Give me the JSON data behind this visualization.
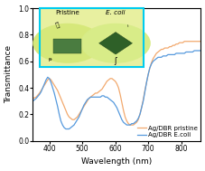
{
  "xlabel": "Wavelength (nm)",
  "ylabel": "Transmittance",
  "xlim": [
    350,
    860
  ],
  "ylim": [
    0.0,
    1.0
  ],
  "xticks": [
    400,
    500,
    600,
    700,
    800
  ],
  "yticks": [
    0.0,
    0.2,
    0.4,
    0.6,
    0.8,
    1.0
  ],
  "pristine_color": "#F2A96E",
  "ecoli_color": "#5599DD",
  "legend_labels": [
    "Ag/DBR pristine",
    "Ag/DBR E.coli"
  ],
  "inset_label_pristine": "Pristine",
  "inset_label_ecoli": "E. coli",
  "inset_box_color": "#00CCEE",
  "pristine_x": [
    350,
    360,
    370,
    375,
    380,
    385,
    390,
    395,
    400,
    405,
    410,
    415,
    420,
    425,
    430,
    435,
    440,
    445,
    450,
    455,
    460,
    465,
    470,
    475,
    480,
    485,
    490,
    495,
    500,
    505,
    510,
    515,
    520,
    525,
    530,
    535,
    540,
    545,
    550,
    555,
    560,
    565,
    570,
    575,
    580,
    585,
    590,
    595,
    600,
    605,
    610,
    615,
    620,
    625,
    630,
    635,
    640,
    645,
    650,
    655,
    660,
    665,
    670,
    675,
    680,
    685,
    690,
    695,
    700,
    705,
    710,
    715,
    720,
    725,
    730,
    735,
    740,
    745,
    750,
    755,
    760,
    765,
    770,
    775,
    780,
    785,
    790,
    795,
    800,
    805,
    810,
    815,
    820,
    825,
    830,
    835,
    840,
    845,
    850,
    855,
    860
  ],
  "pristine_y": [
    0.32,
    0.33,
    0.36,
    0.38,
    0.4,
    0.42,
    0.44,
    0.46,
    0.47,
    0.46,
    0.44,
    0.42,
    0.4,
    0.38,
    0.35,
    0.32,
    0.29,
    0.26,
    0.23,
    0.2,
    0.18,
    0.17,
    0.16,
    0.16,
    0.17,
    0.18,
    0.2,
    0.22,
    0.24,
    0.26,
    0.28,
    0.3,
    0.32,
    0.33,
    0.34,
    0.35,
    0.36,
    0.36,
    0.37,
    0.38,
    0.39,
    0.41,
    0.43,
    0.45,
    0.46,
    0.47,
    0.47,
    0.46,
    0.45,
    0.43,
    0.4,
    0.35,
    0.29,
    0.23,
    0.18,
    0.15,
    0.13,
    0.12,
    0.12,
    0.12,
    0.13,
    0.14,
    0.16,
    0.2,
    0.25,
    0.31,
    0.38,
    0.44,
    0.5,
    0.55,
    0.59,
    0.62,
    0.64,
    0.66,
    0.67,
    0.68,
    0.69,
    0.69,
    0.7,
    0.7,
    0.7,
    0.71,
    0.71,
    0.72,
    0.72,
    0.73,
    0.73,
    0.74,
    0.74,
    0.74,
    0.75,
    0.75,
    0.75,
    0.75,
    0.75,
    0.75,
    0.75,
    0.75,
    0.75,
    0.75,
    0.75
  ],
  "ecoli_x": [
    350,
    360,
    370,
    375,
    380,
    385,
    390,
    395,
    400,
    405,
    410,
    415,
    420,
    425,
    430,
    435,
    440,
    445,
    450,
    455,
    460,
    465,
    470,
    475,
    480,
    485,
    490,
    495,
    500,
    505,
    510,
    515,
    520,
    525,
    530,
    535,
    540,
    545,
    550,
    555,
    560,
    565,
    570,
    575,
    580,
    585,
    590,
    595,
    600,
    605,
    610,
    615,
    620,
    625,
    630,
    635,
    640,
    645,
    650,
    655,
    660,
    665,
    670,
    675,
    680,
    685,
    690,
    695,
    700,
    705,
    710,
    715,
    720,
    725,
    730,
    735,
    740,
    745,
    750,
    755,
    760,
    765,
    770,
    775,
    780,
    785,
    790,
    795,
    800,
    805,
    810,
    815,
    820,
    825,
    830,
    835,
    840,
    845,
    850,
    855,
    860
  ],
  "ecoli_y": [
    0.3,
    0.32,
    0.35,
    0.37,
    0.4,
    0.43,
    0.46,
    0.48,
    0.47,
    0.44,
    0.4,
    0.36,
    0.31,
    0.26,
    0.2,
    0.15,
    0.12,
    0.1,
    0.09,
    0.09,
    0.09,
    0.1,
    0.11,
    0.12,
    0.14,
    0.16,
    0.18,
    0.21,
    0.24,
    0.27,
    0.29,
    0.31,
    0.32,
    0.33,
    0.33,
    0.33,
    0.33,
    0.33,
    0.33,
    0.33,
    0.34,
    0.34,
    0.33,
    0.33,
    0.32,
    0.31,
    0.3,
    0.29,
    0.27,
    0.25,
    0.22,
    0.19,
    0.16,
    0.14,
    0.13,
    0.12,
    0.12,
    0.12,
    0.13,
    0.13,
    0.14,
    0.15,
    0.17,
    0.2,
    0.25,
    0.3,
    0.37,
    0.44,
    0.5,
    0.55,
    0.58,
    0.6,
    0.61,
    0.62,
    0.63,
    0.63,
    0.63,
    0.64,
    0.64,
    0.64,
    0.65,
    0.65,
    0.65,
    0.65,
    0.65,
    0.66,
    0.66,
    0.66,
    0.66,
    0.66,
    0.66,
    0.67,
    0.67,
    0.67,
    0.67,
    0.67,
    0.68,
    0.68,
    0.68,
    0.68,
    0.68
  ]
}
